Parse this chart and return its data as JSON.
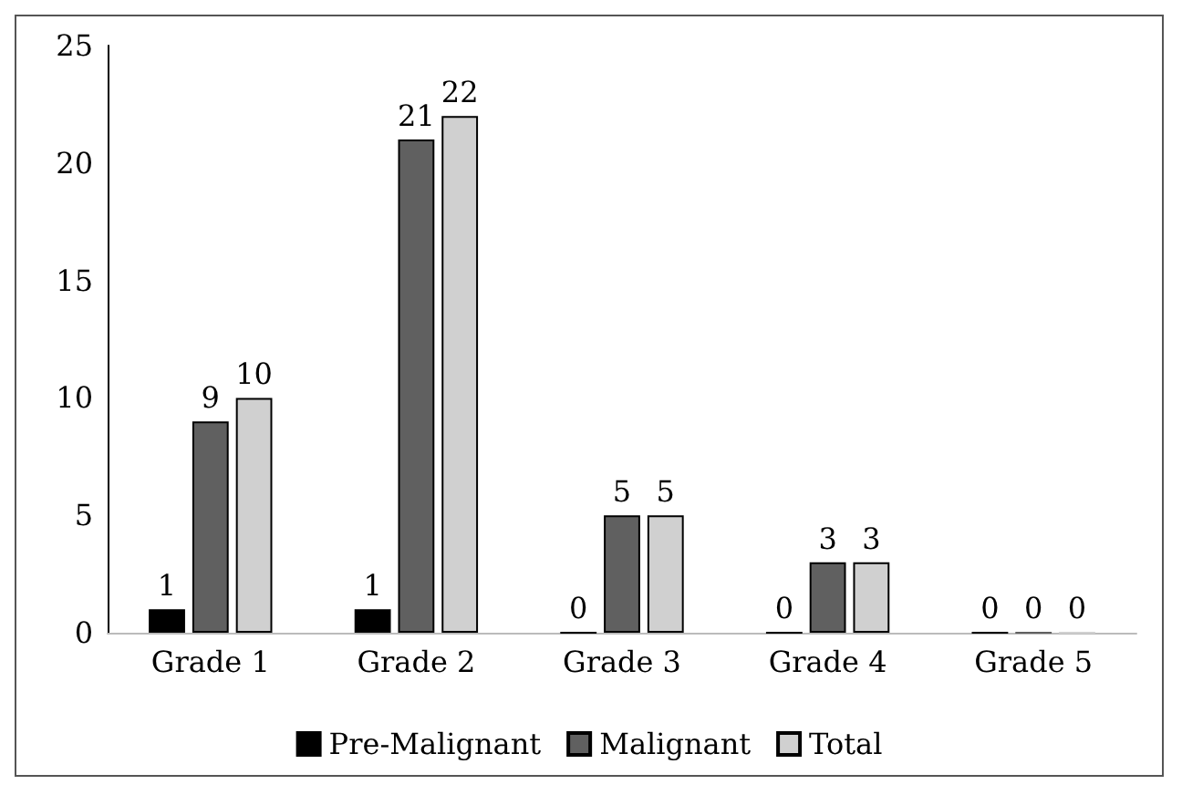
{
  "chart_data": {
    "type": "bar",
    "categories": [
      "Grade 1",
      "Grade 2",
      "Grade 3",
      "Grade 4",
      "Grade 5"
    ],
    "series": [
      {
        "name": "Pre-Malignant",
        "color": "#000000",
        "values": [
          1,
          1,
          0,
          0,
          0
        ]
      },
      {
        "name": "Malignant",
        "color": "#606060",
        "values": [
          9,
          21,
          5,
          3,
          0
        ]
      },
      {
        "name": "Total",
        "color": "#d0d0d0",
        "values": [
          10,
          22,
          5,
          3,
          0
        ]
      }
    ],
    "ylim": [
      0,
      25
    ],
    "yticks": [
      0,
      5,
      10,
      15,
      20,
      25
    ],
    "grid": false,
    "legend": "bottom",
    "data_labels": true
  }
}
